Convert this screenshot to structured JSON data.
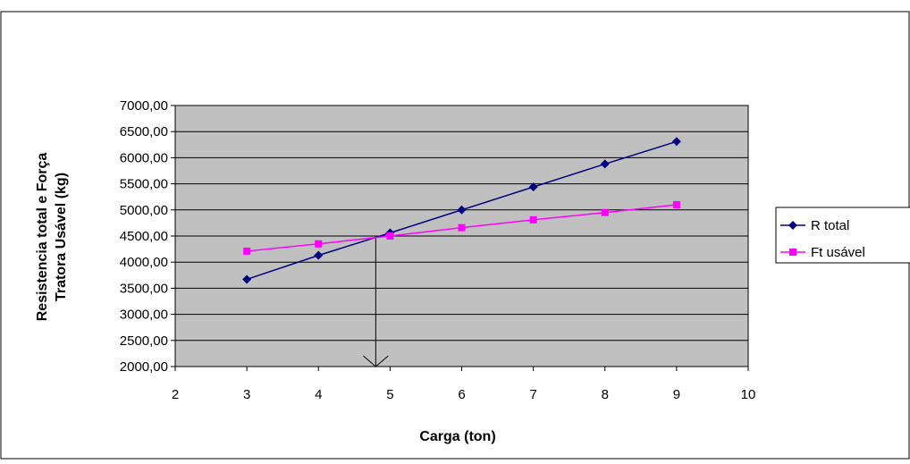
{
  "chart_data": {
    "type": "line",
    "title": "",
    "xlabel": "Carga (ton)",
    "ylabel_lines": [
      "Resistencia total e Força",
      "Tratora Usável (kg)"
    ],
    "xlim": [
      2,
      10
    ],
    "ylim": [
      2000,
      7000
    ],
    "x_ticks": [
      2,
      3,
      4,
      5,
      6,
      7,
      8,
      9,
      10
    ],
    "y_ticks": [
      2000,
      2500,
      3000,
      3500,
      4000,
      4500,
      5000,
      5500,
      6000,
      6500,
      7000
    ],
    "x_tick_labels": [
      "2",
      "3",
      "4",
      "5",
      "6",
      "7",
      "8",
      "9",
      "10"
    ],
    "y_tick_labels": [
      "2000,00",
      "2500,00",
      "3000,00",
      "3500,00",
      "4000,00",
      "4500,00",
      "5000,00",
      "5500,00",
      "6000,00",
      "6500,00",
      "7000,00"
    ],
    "grid": "horizontal",
    "plot_background": "#c0c0c0",
    "legend_position": "right",
    "x": [
      3,
      4,
      5,
      6,
      7,
      8,
      9
    ],
    "series": [
      {
        "name": "R total",
        "color": "#000080",
        "marker": "diamond",
        "values": [
          3670,
          4130,
          4560,
          5000,
          5440,
          5880,
          6310
        ]
      },
      {
        "name": "Ft usável",
        "color": "#ff00ff",
        "marker": "square",
        "values": [
          4210,
          4350,
          4500,
          4660,
          4810,
          4950,
          5100
        ]
      }
    ],
    "annotation": {
      "type": "arrow",
      "x": 4.8,
      "y_from": 4500,
      "y_to": 2000
    }
  }
}
